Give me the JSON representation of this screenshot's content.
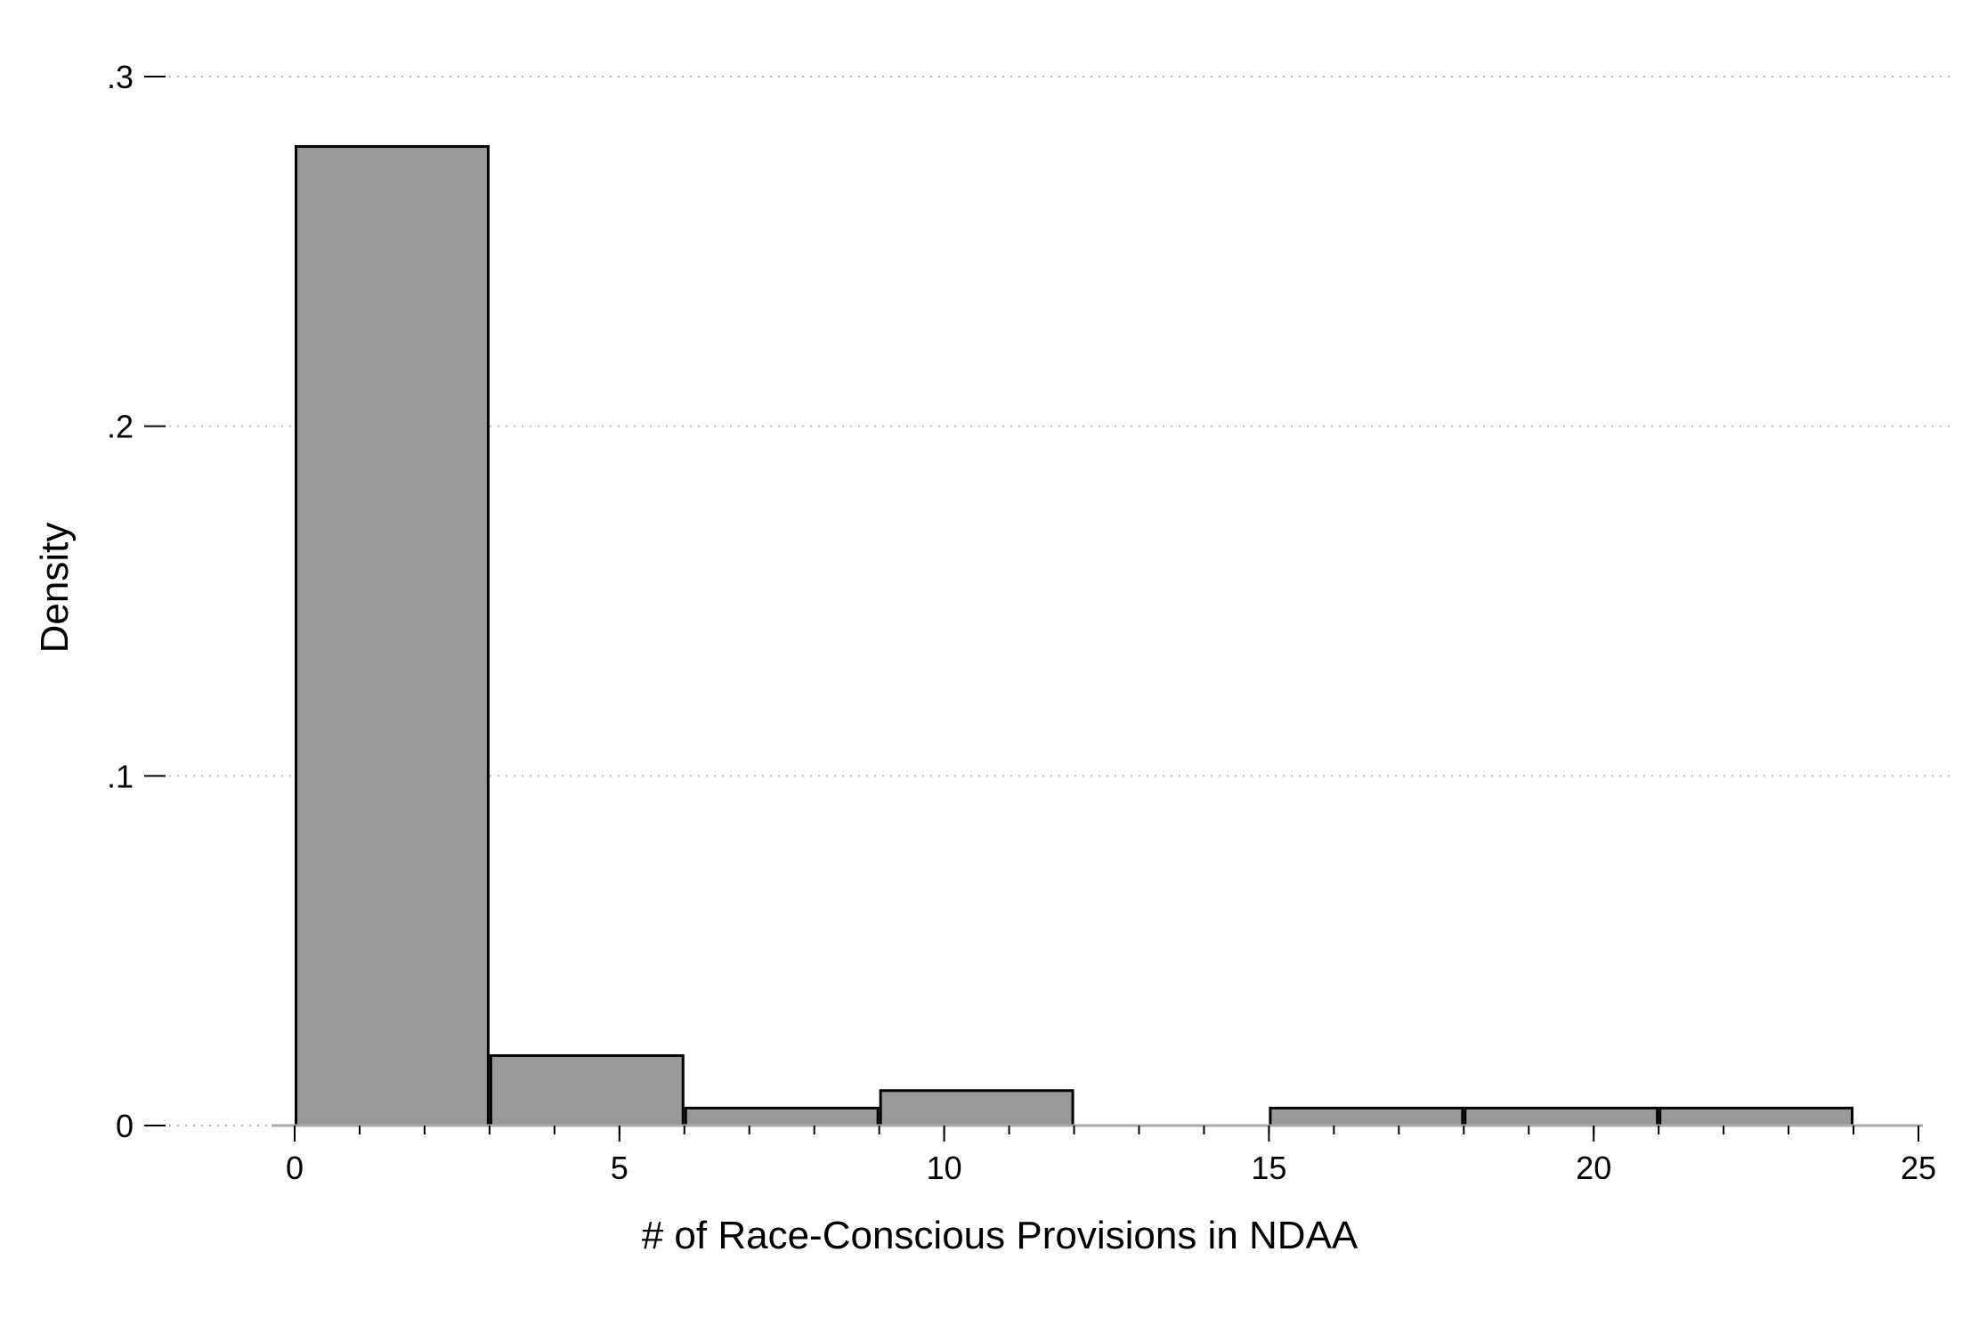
{
  "chart_data": {
    "type": "bar",
    "xlabel": "# of Race-Conscious Provisions in NDAA",
    "ylabel": "Density",
    "xlim": [
      0,
      25
    ],
    "ylim": [
      0,
      0.3
    ],
    "x_ticks": [
      {
        "value": 0,
        "label": "0"
      },
      {
        "value": 5,
        "label": "5"
      },
      {
        "value": 10,
        "label": "10"
      },
      {
        "value": 15,
        "label": "15"
      },
      {
        "value": 20,
        "label": "20"
      },
      {
        "value": 25,
        "label": "25"
      }
    ],
    "x_minor_tick_step": 1,
    "y_ticks": [
      {
        "value": 0,
        "label": "0"
      },
      {
        "value": 0.1,
        "label": ".1"
      },
      {
        "value": 0.2,
        "label": ".2"
      },
      {
        "value": 0.3,
        "label": ".3"
      }
    ],
    "gridlines": "horizontal dotted",
    "bins": [
      {
        "start": 0,
        "end": 3,
        "value": 0.28
      },
      {
        "start": 3,
        "end": 6,
        "value": 0.02
      },
      {
        "start": 6,
        "end": 9,
        "value": 0.005
      },
      {
        "start": 9,
        "end": 12,
        "value": 0.01
      },
      {
        "start": 12,
        "end": 15,
        "value": 0
      },
      {
        "start": 15,
        "end": 18,
        "value": 0.005
      },
      {
        "start": 18,
        "end": 21,
        "value": 0.005
      },
      {
        "start": 21,
        "end": 24,
        "value": 0.005
      }
    ],
    "colors": {
      "bar_fill": "#999999",
      "bar_stroke": "#000000",
      "grid": "#bbbbbb",
      "axis": "#aaaaaa"
    }
  }
}
